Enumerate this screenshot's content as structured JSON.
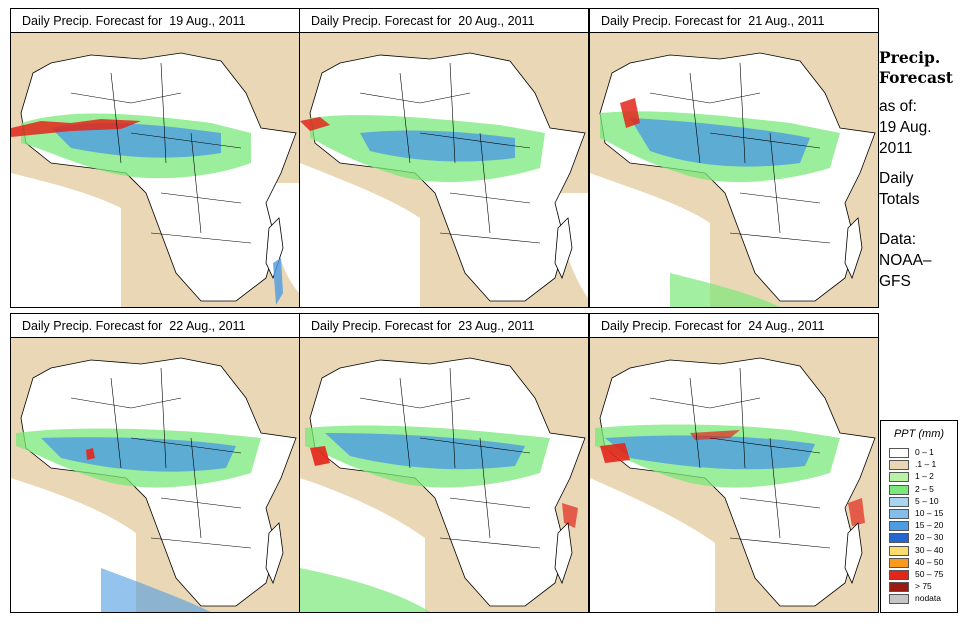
{
  "panels": [
    {
      "title": "Daily Precip. Forecast for  19 Aug., 2011"
    },
    {
      "title": "Daily Precip. Forecast for  20 Aug., 2011"
    },
    {
      "title": "Daily Precip. Forecast for  21 Aug., 2011"
    },
    {
      "title": "Daily Precip. Forecast for  22 Aug., 2011"
    },
    {
      "title": "Daily Precip. Forecast for  23 Aug., 2011"
    },
    {
      "title": "Daily Precip. Forecast for  24 Aug., 2011"
    }
  ],
  "side": {
    "title_line1": "Precip.",
    "title_line2": "Forecast",
    "asof_line1": "as of:",
    "asof_line2": "19 Aug.",
    "asof_line3": "2011",
    "totals_line1": "Daily",
    "totals_line2": "Totals",
    "data_line1": "Data:",
    "data_line2": "NOAA–",
    "data_line3": "GFS"
  },
  "legend": {
    "title": "PPT (mm)",
    "items": [
      {
        "label": "0 – 1",
        "color": "#ffffff"
      },
      {
        "label": ".1 – 1",
        "color": "#ead7b5"
      },
      {
        "label": "1 – 2",
        "color": "#b9f2a6"
      },
      {
        "label": "2 – 5",
        "color": "#7ae87a"
      },
      {
        "label": "5 – 10",
        "color": "#a9d6ee"
      },
      {
        "label": "10 – 15",
        "color": "#83bde8"
      },
      {
        "label": "15 – 20",
        "color": "#4d9be2"
      },
      {
        "label": "20 – 30",
        "color": "#2366d1"
      },
      {
        "label": "30 – 40",
        "color": "#fadc6e"
      },
      {
        "label": "40 – 50",
        "color": "#f79a1e"
      },
      {
        "label": "50 – 75",
        "color": "#e3261b"
      },
      {
        "label": "> 75",
        "color": "#9a1b12"
      },
      {
        "label": "nodata",
        "color": "#c6c6c6"
      }
    ]
  },
  "colors": {
    "land_dry": "#ffffff",
    "ocean_light": "#ead7b5",
    "rain_light": "#7ae87a",
    "rain_mid": "#4d9be2",
    "rain_heavy": "#e3261b",
    "border": "#000000"
  }
}
